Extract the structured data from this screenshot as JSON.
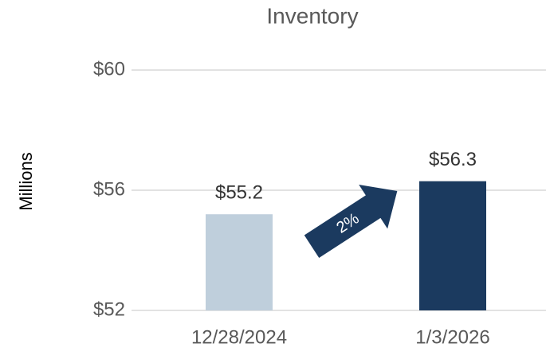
{
  "chart_data": {
    "type": "bar",
    "title": "Inventory",
    "y_label": "Millions",
    "categories": [
      "12/28/2024",
      "1/3/2026"
    ],
    "values": [
      55.2,
      56.3
    ],
    "value_labels": [
      "$55.2",
      "$56.3"
    ],
    "colors": [
      "#bfcfdc",
      "#1b3a5f"
    ],
    "ylim": [
      52,
      60
    ],
    "yticks": [
      {
        "value": 52,
        "label": "$52"
      },
      {
        "value": 56,
        "label": "$56"
      },
      {
        "value": 60,
        "label": "$60"
      }
    ],
    "grid": true,
    "annotation": "2%"
  }
}
